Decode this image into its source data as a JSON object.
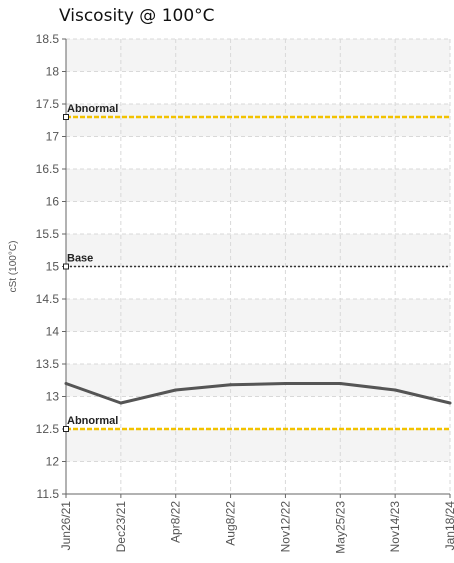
{
  "chart_data": {
    "type": "line",
    "title": "Viscosity @ 100°C",
    "ylabel": "cSt (100°C)",
    "xlabel": "",
    "categories": [
      "Jun26/21",
      "Dec23/21",
      "Apr8/22",
      "Aug8/22",
      "Nov12/22",
      "May25/23",
      "Nov14/23",
      "Jan18/24"
    ],
    "series": [
      {
        "values": [
          13.2,
          12.9,
          13.1,
          13.18,
          13.2,
          13.2,
          13.1,
          12.9
        ],
        "color": "#555555"
      }
    ],
    "reference_lines": [
      {
        "label": "Abnormal",
        "value": 17.3,
        "color": "#f2c200",
        "style": "dashed"
      },
      {
        "label": "Base",
        "value": 15.0,
        "color": "#333333",
        "style": "dotted"
      },
      {
        "label": "Abnormal",
        "value": 12.5,
        "color": "#f2c200",
        "style": "dashed"
      }
    ],
    "ylim": [
      11.5,
      18.5
    ],
    "yticks": [
      "11.5",
      "12",
      "12.5",
      "13",
      "13.5",
      "14",
      "14.5",
      "15",
      "15.5",
      "16",
      "16.5",
      "17",
      "17.5",
      "18",
      "18.5"
    ],
    "grid": true,
    "legend": "none"
  }
}
